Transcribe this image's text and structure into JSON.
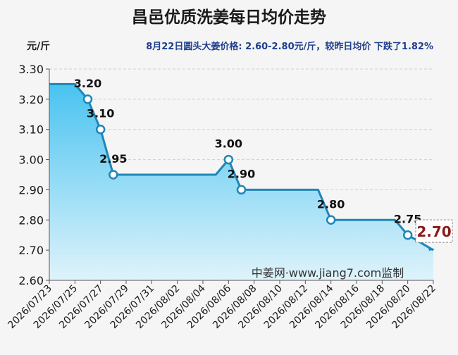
{
  "chart_data": {
    "type": "area",
    "title": "昌邑优质洗姜每日均价走势",
    "subtitle": "8月22日圆头大姜价格: 2.60-2.80元/斤，较昨日均价 下跌了1.82%",
    "ylabel": "元/斤",
    "watermark": "中姜网·www.jiang7.com监制",
    "ylim": [
      2.6,
      3.3
    ],
    "yticks": [
      "2.60",
      "2.70",
      "2.80",
      "2.90",
      "3.00",
      "3.10",
      "3.20",
      "3.30"
    ],
    "xlim": [
      "2026-07-23",
      "2026-08-22"
    ],
    "xticks": [
      "2026/07/23",
      "2026/07/25",
      "2026/07/27",
      "2026/07/29",
      "2026/07/31",
      "2026/08/02",
      "2026/08/04",
      "2026/08/06",
      "2026/08/08",
      "2026/08/10",
      "2026/08/12",
      "2026/08/14",
      "2026/08/16",
      "2026/08/18",
      "2026/08/20",
      "2026/08/22"
    ],
    "grid": true,
    "points": [
      {
        "x": "2026-07-23",
        "y": 3.25
      },
      {
        "x": "2026-07-25",
        "y": 3.25
      },
      {
        "x": "2026-07-26",
        "y": 3.2,
        "label": "3.20"
      },
      {
        "x": "2026-07-27",
        "y": 3.1,
        "label": "3.10"
      },
      {
        "x": "2026-07-28",
        "y": 2.95,
        "label": "2.95"
      },
      {
        "x": "2026-08-05",
        "y": 2.95
      },
      {
        "x": "2026-08-06",
        "y": 3.0,
        "label": "3.00"
      },
      {
        "x": "2026-08-07",
        "y": 2.9,
        "label": "2.90"
      },
      {
        "x": "2026-08-13",
        "y": 2.9
      },
      {
        "x": "2026-08-14",
        "y": 2.8,
        "label": "2.80"
      },
      {
        "x": "2026-08-19",
        "y": 2.8
      },
      {
        "x": "2026-08-20",
        "y": 2.75,
        "label": "2.75"
      },
      {
        "x": "2026-08-22",
        "y": 2.7,
        "label": "2.70",
        "highlight": true
      }
    ],
    "colors": {
      "line": "#1f86b8",
      "area_top": "#49c3f0",
      "area_bottom": "#dff3fb",
      "title": "#1a1a1a",
      "subtitle": "#1f3f8f",
      "highlight_label": "#8b1a1a",
      "marker_fill": "#ffffff"
    }
  }
}
